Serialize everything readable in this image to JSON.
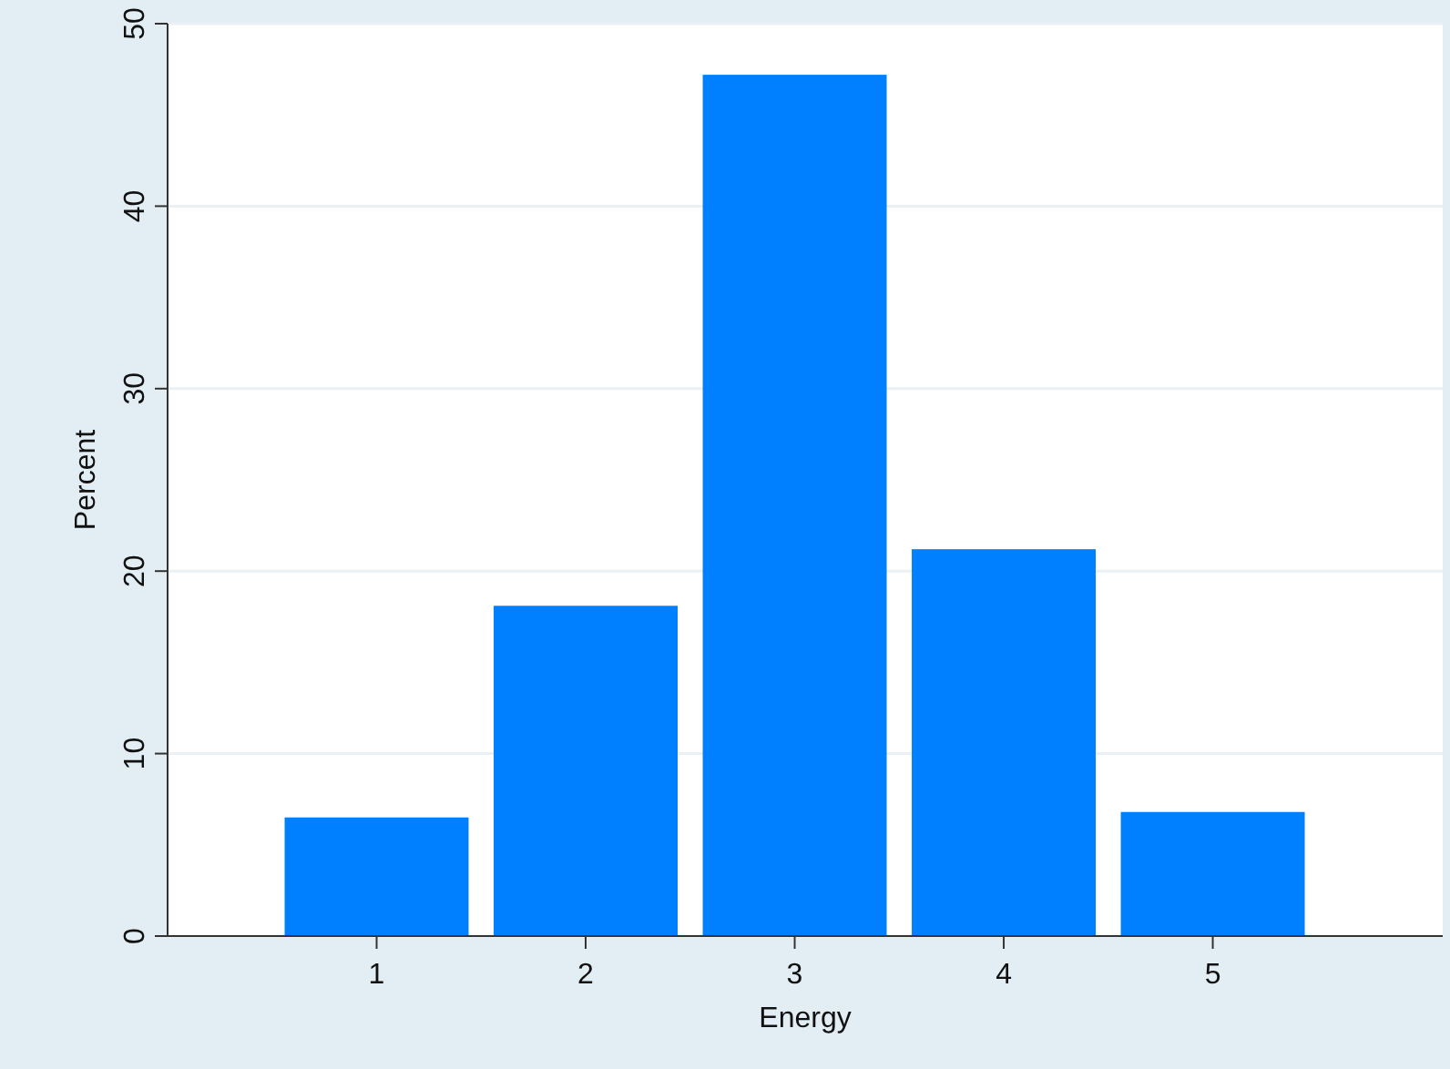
{
  "chart_data": {
    "type": "bar",
    "xlabel": "Energy",
    "ylabel": "Percent",
    "x": [
      1,
      2,
      3,
      4,
      5
    ],
    "values": [
      6.5,
      18.1,
      47.2,
      21.2,
      6.8
    ],
    "color": "#0080ff",
    "xlim": [
      0,
      6.1
    ],
    "xticks": [
      1,
      2,
      3,
      4,
      5
    ],
    "ylim": [
      0,
      50
    ],
    "yticks": [
      0,
      10,
      20,
      30,
      40,
      50
    ],
    "grid": "y"
  }
}
